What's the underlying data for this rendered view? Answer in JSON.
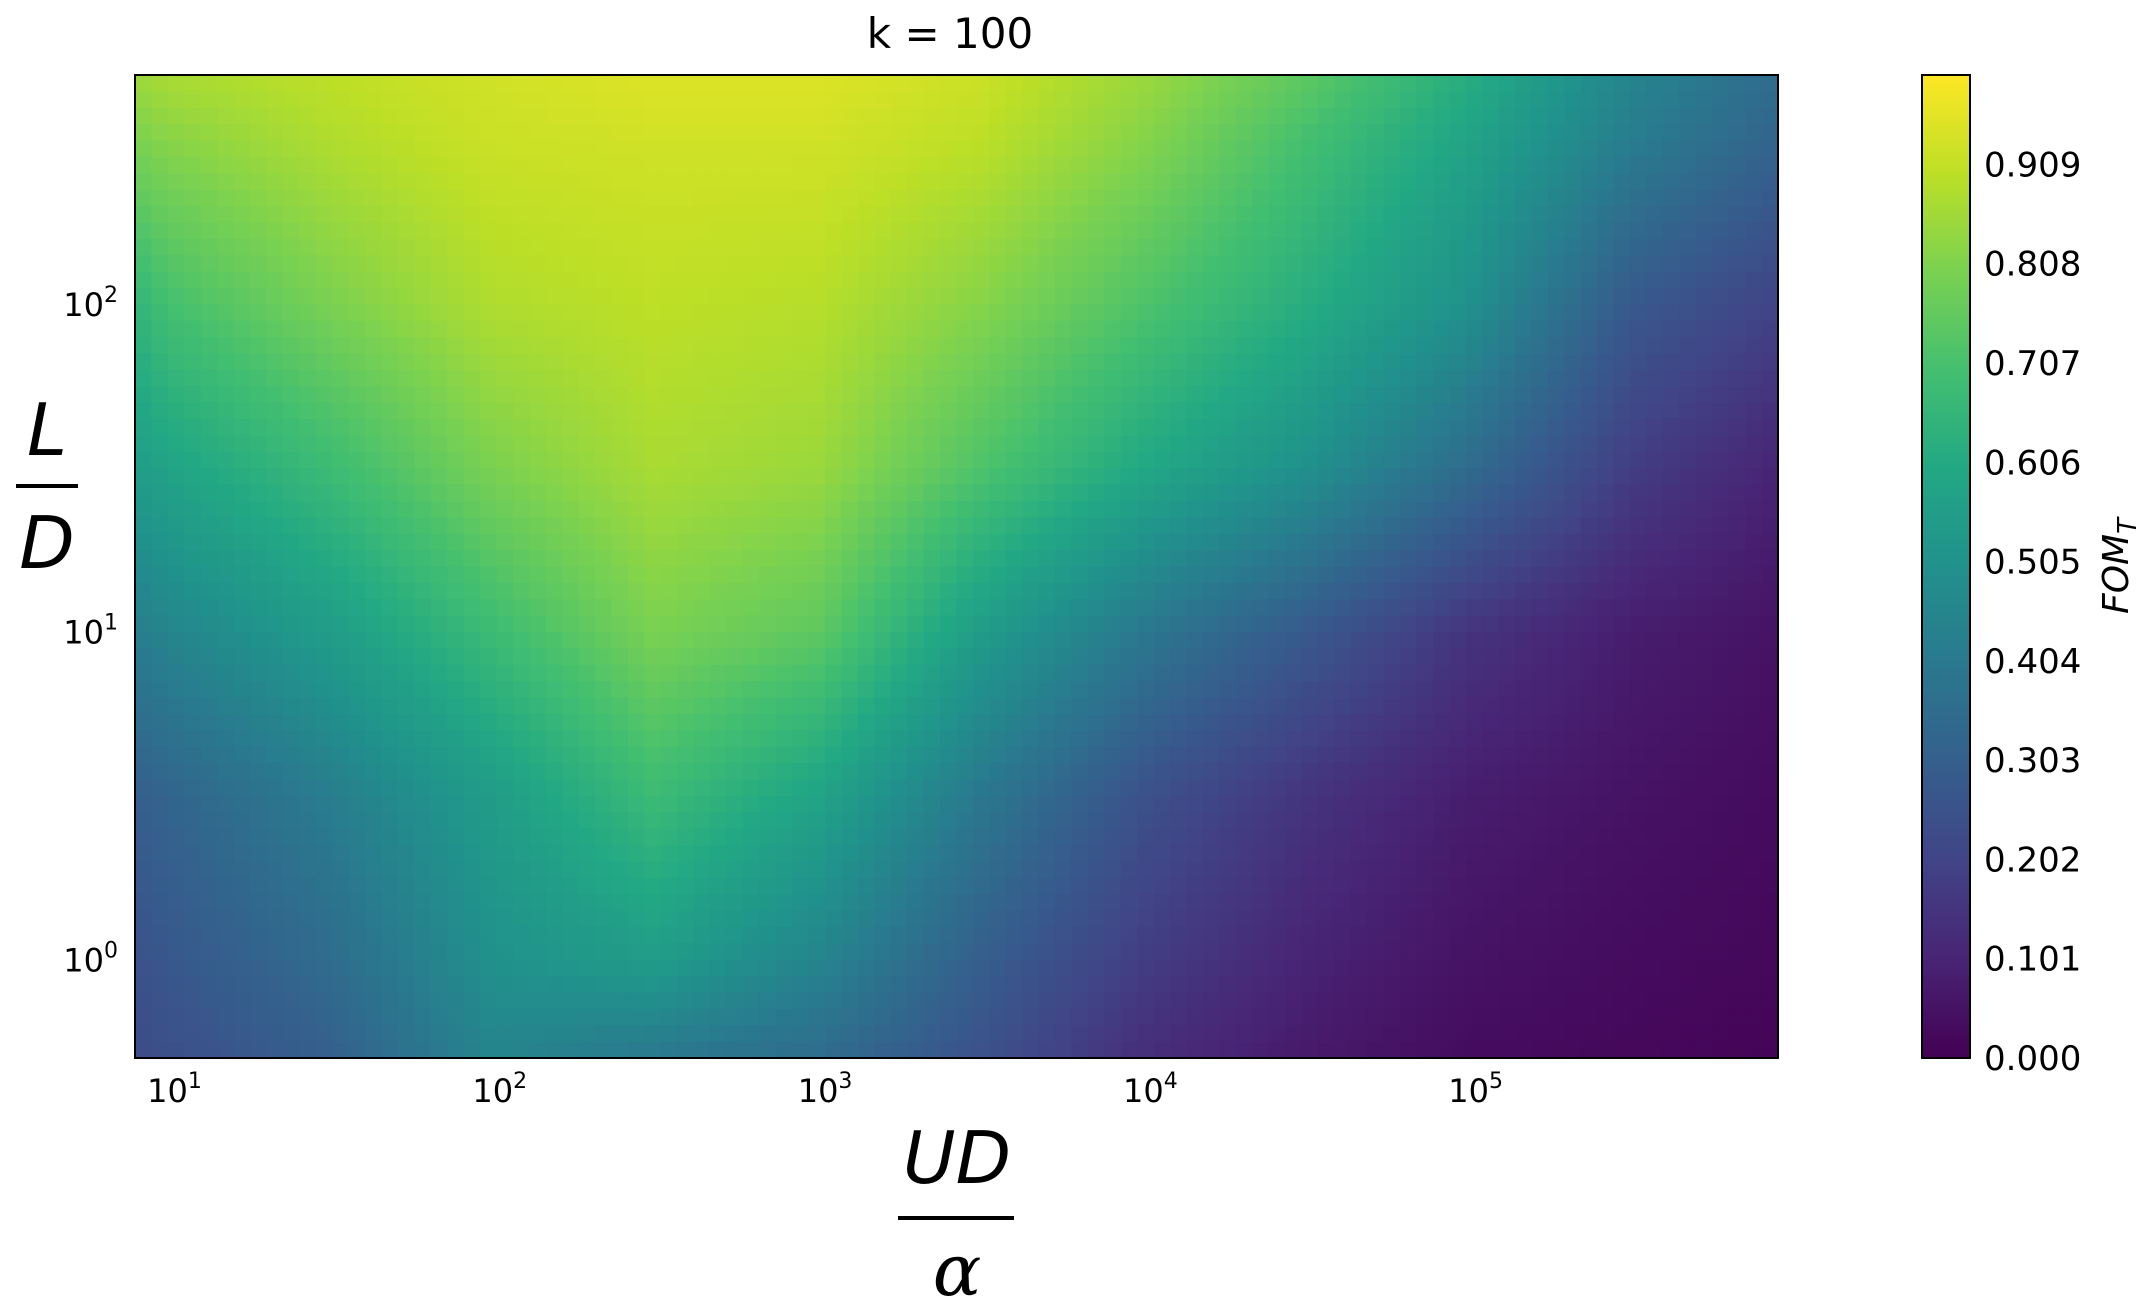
{
  "chart_data": {
    "type": "heatmap",
    "title": "k = 100",
    "x_axis": {
      "label_numerator": "UD",
      "label_denominator": "α",
      "scale": "log",
      "range": [
        8,
        900000
      ],
      "ticks": [
        {
          "value": 10,
          "base": "10",
          "exp": "1"
        },
        {
          "value": 100,
          "base": "10",
          "exp": "2"
        },
        {
          "value": 1000,
          "base": "10",
          "exp": "3"
        },
        {
          "value": 10000,
          "base": "10",
          "exp": "4"
        },
        {
          "value": 100000,
          "base": "10",
          "exp": "5"
        }
      ]
    },
    "y_axis": {
      "label_numerator": "L",
      "label_denominator": "D",
      "scale": "log",
      "range": [
        0.5,
        500
      ],
      "ticks": [
        {
          "value": 1,
          "base": "10",
          "exp": "0"
        },
        {
          "value": 10,
          "base": "10",
          "exp": "1"
        },
        {
          "value": 100,
          "base": "10",
          "exp": "2"
        }
      ]
    },
    "colorbar": {
      "label_main": "FOM",
      "label_sub": "T",
      "colormap": "viridis",
      "range": [
        0,
        1.0
      ],
      "ticks": [
        {
          "value": 0.0,
          "label": "0.000"
        },
        {
          "value": 0.101,
          "label": "0.101"
        },
        {
          "value": 0.202,
          "label": "0.202"
        },
        {
          "value": 0.303,
          "label": "0.303"
        },
        {
          "value": 0.404,
          "label": "0.404"
        },
        {
          "value": 0.505,
          "label": "0.505"
        },
        {
          "value": 0.606,
          "label": "0.606"
        },
        {
          "value": 0.707,
          "label": "0.707"
        },
        {
          "value": 0.808,
          "label": "0.808"
        },
        {
          "value": 0.909,
          "label": "0.909"
        }
      ]
    },
    "grid": false,
    "x_log_values": [
      0.9,
      1.0,
      1.5,
      2.0,
      2.5,
      3.0,
      3.5,
      4.0,
      4.5,
      5.0,
      5.5,
      5.95
    ],
    "y_log_values": [
      -0.3,
      0.0,
      0.5,
      1.0,
      1.5,
      2.0,
      2.5,
      2.7
    ],
    "values": [
      [
        0.23,
        0.24,
        0.3,
        0.45,
        0.4,
        0.35,
        0.25,
        0.13,
        0.07,
        0.03,
        0.02,
        0.01
      ],
      [
        0.25,
        0.27,
        0.35,
        0.5,
        0.55,
        0.45,
        0.3,
        0.18,
        0.1,
        0.05,
        0.03,
        0.02
      ],
      [
        0.3,
        0.32,
        0.42,
        0.55,
        0.68,
        0.58,
        0.4,
        0.25,
        0.15,
        0.08,
        0.05,
        0.03
      ],
      [
        0.42,
        0.45,
        0.55,
        0.68,
        0.8,
        0.75,
        0.55,
        0.4,
        0.28,
        0.15,
        0.08,
        0.05
      ],
      [
        0.55,
        0.58,
        0.68,
        0.8,
        0.87,
        0.85,
        0.72,
        0.6,
        0.5,
        0.35,
        0.18,
        0.1
      ],
      [
        0.65,
        0.7,
        0.8,
        0.88,
        0.9,
        0.89,
        0.82,
        0.72,
        0.62,
        0.5,
        0.28,
        0.2
      ],
      [
        0.8,
        0.82,
        0.88,
        0.92,
        0.93,
        0.93,
        0.9,
        0.82,
        0.7,
        0.58,
        0.42,
        0.32
      ],
      [
        0.85,
        0.87,
        0.9,
        0.93,
        0.95,
        0.95,
        0.92,
        0.85,
        0.75,
        0.62,
        0.45,
        0.35
      ]
    ]
  }
}
